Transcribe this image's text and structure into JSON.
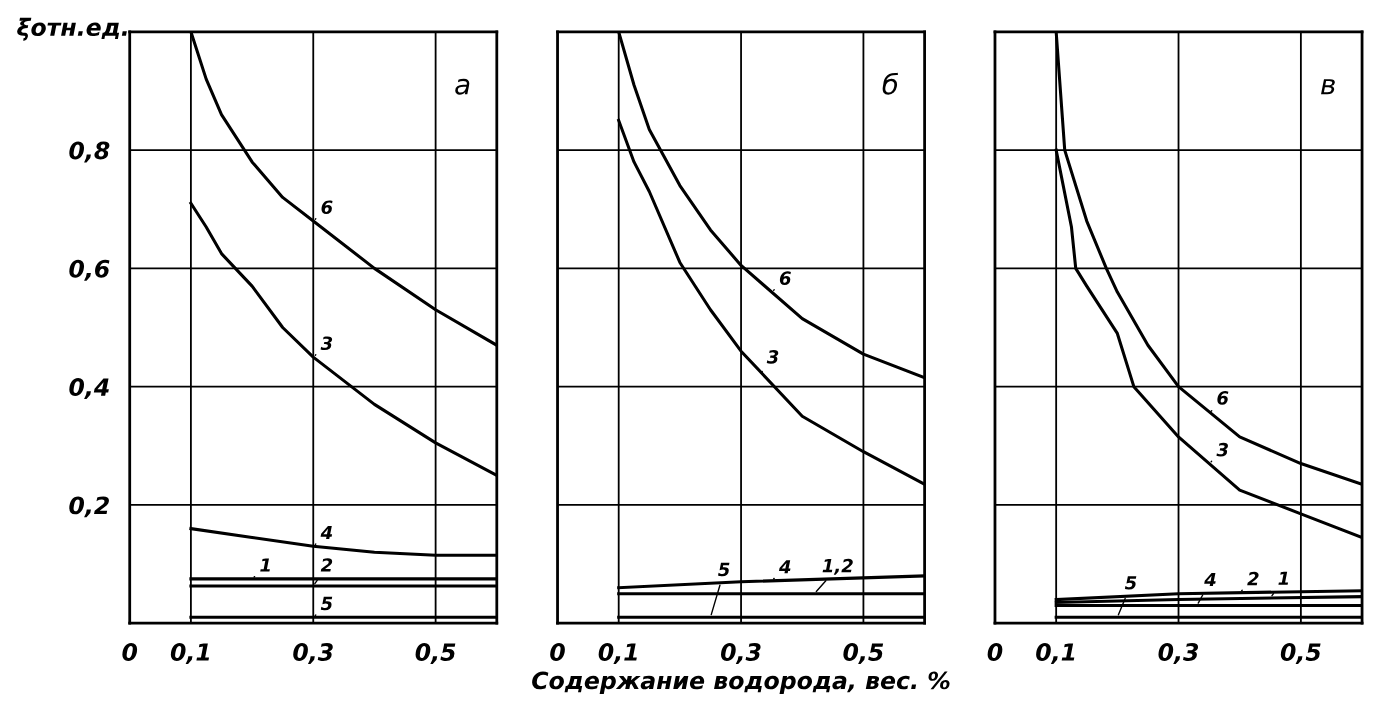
{
  "chart_data": [
    {
      "type": "line",
      "ylabel": "ξотн.ед.",
      "xlim": [
        0,
        0.6
      ],
      "ylim": [
        0,
        1.0
      ],
      "xticks": [
        {
          "value": 0,
          "label": "0"
        },
        {
          "value": 0.1,
          "label": "0,1"
        },
        {
          "value": 0.3,
          "label": "0,3"
        },
        {
          "value": 0.5,
          "label": "0,5"
        }
      ],
      "yticks": [
        {
          "value": 0.2,
          "label": "0,2"
        },
        {
          "value": 0.4,
          "label": "0,4"
        },
        {
          "value": 0.6,
          "label": "0,6"
        },
        {
          "value": 0.8,
          "label": "0,8"
        }
      ],
      "grid": true,
      "line_style": "solid",
      "marker": "none",
      "series": [
        {
          "color": "#000000",
          "x": [
            0.1,
            0.125,
            0.15,
            0.2,
            0.25,
            0.3,
            0.4,
            0.5,
            0.6
          ],
          "values": [
            1.0,
            0.92,
            0.86,
            0.78,
            0.72,
            0.68,
            0.6,
            0.53,
            0.47
          ]
        },
        {
          "color": "#000000",
          "x": [
            0.1,
            0.125,
            0.15,
            0.2,
            0.25,
            0.3,
            0.4,
            0.5,
            0.6
          ],
          "values": [
            0.71,
            0.67,
            0.625,
            0.57,
            0.5,
            0.45,
            0.37,
            0.305,
            0.25
          ]
        },
        {
          "color": "#000000",
          "x": [
            0.1,
            0.2,
            0.3,
            0.4,
            0.5,
            0.6
          ],
          "values": [
            0.16,
            0.145,
            0.13,
            0.12,
            0.115,
            0.115
          ]
        },
        {
          "color": "#000000",
          "x": [
            0.1,
            0.3,
            0.6
          ],
          "values": [
            0.075,
            0.075,
            0.075
          ]
        },
        {
          "color": "#000000",
          "x": [
            0.1,
            0.3,
            0.6
          ],
          "values": [
            0.063,
            0.063,
            0.063
          ]
        },
        {
          "color": "#000000",
          "x": [
            0.1,
            0.3,
            0.6
          ],
          "values": [
            0.01,
            0.01,
            0.01
          ]
        }
      ],
      "annotations": [
        "а",
        {
          "text": "6",
          "x": 0.3,
          "y": 0.68
        },
        {
          "text": "3",
          "x": 0.3,
          "y": 0.45
        },
        {
          "text": "4",
          "x": 0.3,
          "y": 0.13
        },
        {
          "text": "1",
          "x": 0.2,
          "y": 0.075
        },
        {
          "text": "2",
          "x": 0.3,
          "y": 0.063
        },
        {
          "text": "5",
          "x": 0.3,
          "y": 0.01
        }
      ]
    },
    {
      "type": "line",
      "xlabel": "Содержание водорода, вес. %",
      "xlim": [
        0,
        0.6
      ],
      "ylim": [
        0,
        1.0
      ],
      "xticks": [
        {
          "value": 0,
          "label": "0"
        },
        {
          "value": 0.1,
          "label": "0,1"
        },
        {
          "value": 0.3,
          "label": "0,3"
        },
        {
          "value": 0.5,
          "label": "0,5"
        }
      ],
      "yticks": [
        0.2,
        0.4,
        0.6,
        0.8
      ],
      "tick_labels": "x",
      "grid": true,
      "line_style": "solid",
      "marker": "none",
      "series": [
        {
          "color": "#000000",
          "x": [
            0.1,
            0.125,
            0.15,
            0.2,
            0.25,
            0.3,
            0.4,
            0.5,
            0.6
          ],
          "values": [
            1.0,
            0.91,
            0.835,
            0.74,
            0.665,
            0.605,
            0.515,
            0.455,
            0.415
          ]
        },
        {
          "color": "#000000",
          "x": [
            0.1,
            0.125,
            0.15,
            0.2,
            0.25,
            0.3,
            0.4,
            0.5,
            0.6
          ],
          "values": [
            0.85,
            0.78,
            0.73,
            0.61,
            0.53,
            0.46,
            0.35,
            0.29,
            0.235
          ]
        },
        {
          "color": "#000000",
          "x": [
            0.1,
            0.3,
            0.6
          ],
          "values": [
            0.06,
            0.07,
            0.08
          ]
        },
        {
          "color": "#000000",
          "x": [
            0.1,
            0.3,
            0.6
          ],
          "values": [
            0.05,
            0.05,
            0.05
          ]
        },
        {
          "color": "#000000",
          "x": [
            0.1,
            0.3,
            0.6
          ],
          "values": [
            0.01,
            0.01,
            0.01
          ]
        }
      ],
      "annotations": [
        "б",
        {
          "text": "6",
          "x": 0.35,
          "y": 0.56
        },
        {
          "text": "3",
          "x": 0.33,
          "y": 0.42
        },
        {
          "text": "4",
          "x": 0.35,
          "y": 0.072
        },
        {
          "text": "1,2",
          "x": 0.42,
          "y": 0.05
        },
        {
          "text": "5",
          "x": 0.25,
          "y": 0.01
        }
      ]
    },
    {
      "type": "line",
      "xlim": [
        0,
        0.6
      ],
      "ylim": [
        0,
        1.0
      ],
      "xticks": [
        {
          "value": 0,
          "label": "0"
        },
        {
          "value": 0.1,
          "label": "0,1"
        },
        {
          "value": 0.3,
          "label": "0,3"
        },
        {
          "value": 0.5,
          "label": "0,5"
        }
      ],
      "yticks": [
        0.2,
        0.4,
        0.6,
        0.8
      ],
      "tick_labels": "x",
      "grid": true,
      "line_style": "solid",
      "marker": "none",
      "series": [
        {
          "color": "#000000",
          "x": [
            0.1,
            0.114,
            0.15,
            0.182,
            0.2,
            0.25,
            0.3,
            0.4,
            0.5,
            0.6
          ],
          "values": [
            1.0,
            0.8,
            0.68,
            0.6,
            0.56,
            0.47,
            0.4,
            0.315,
            0.27,
            0.235
          ]
        },
        {
          "color": "#000000",
          "x": [
            0.1,
            0.125,
            0.132,
            0.15,
            0.2,
            0.227,
            0.3,
            0.4,
            0.5,
            0.6
          ],
          "values": [
            0.8,
            0.67,
            0.6,
            0.57,
            0.49,
            0.4,
            0.315,
            0.225,
            0.185,
            0.145
          ]
        },
        {
          "color": "#000000",
          "x": [
            0.1,
            0.3,
            0.6
          ],
          "values": [
            0.03,
            0.03,
            0.03
          ]
        },
        {
          "color": "#000000",
          "x": [
            0.1,
            0.3,
            0.6
          ],
          "values": [
            0.04,
            0.05,
            0.055
          ]
        },
        {
          "color": "#000000",
          "x": [
            0.1,
            0.3,
            0.6
          ],
          "values": [
            0.035,
            0.04,
            0.045
          ]
        },
        {
          "color": "#000000",
          "x": [
            0.1,
            0.3,
            0.6
          ],
          "values": [
            0.01,
            0.01,
            0.01
          ]
        }
      ],
      "annotations": [
        "в",
        {
          "text": "6",
          "x": 0.35,
          "y": 0.355
        },
        {
          "text": "3",
          "x": 0.35,
          "y": 0.27
        },
        {
          "text": "4",
          "x": 0.33,
          "y": 0.03
        },
        {
          "text": "2",
          "x": 0.4,
          "y": 0.052
        },
        {
          "text": "1",
          "x": 0.45,
          "y": 0.043
        },
        {
          "text": "5",
          "x": 0.2,
          "y": 0.01
        }
      ]
    }
  ]
}
